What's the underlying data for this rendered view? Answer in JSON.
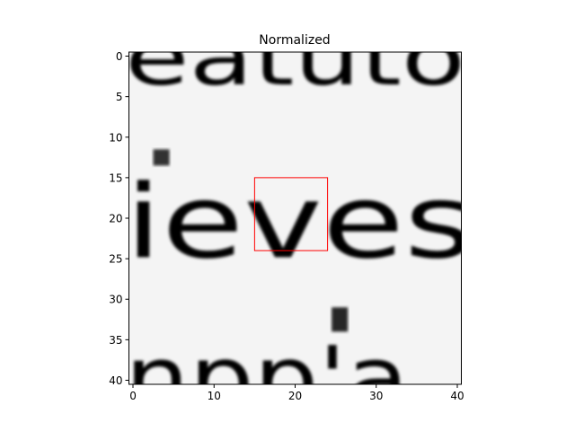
{
  "chart_data": {
    "type": "heatmap",
    "title": "Normalized",
    "xlabel": "",
    "ylabel": "",
    "colormap": "gray",
    "grid": false,
    "image_size": [
      41,
      41
    ],
    "xlim": [
      -0.5,
      40.5
    ],
    "ylim": [
      40.5,
      -0.5
    ],
    "x_ticks": [
      0,
      10,
      20,
      30,
      40
    ],
    "x_tick_labels": [
      "0",
      "10",
      "20",
      "30",
      "40"
    ],
    "y_ticks": [
      0,
      5,
      10,
      15,
      20,
      25,
      30,
      35,
      40
    ],
    "y_tick_labels": [
      "0",
      "5",
      "10",
      "15",
      "20",
      "25",
      "30",
      "35",
      "40"
    ],
    "highlight_box": {
      "color": "#ff0000",
      "x_range": [
        15,
        24
      ],
      "y_range": [
        15,
        24
      ]
    },
    "text_rows": [
      {
        "text": "eatuto",
        "y_range": [
          -3.5,
          3.5
        ],
        "x_range": [
          -1,
          41
        ],
        "darkness": 0.85
      },
      {
        "text": "ieves",
        "y_range": [
          15.5,
          24.8
        ],
        "x_range": [
          -1,
          42
        ],
        "darkness": 0.9
      },
      {
        "text": "npp'a",
        "y_range": [
          35.5,
          43.5
        ],
        "x_range": [
          -1,
          34
        ],
        "darkness": 0.8
      }
    ],
    "extra_marks": [
      {
        "shape": "dot",
        "x": 3.5,
        "y": 12.5,
        "w": 2,
        "h": 2,
        "darkness": 0.8
      },
      {
        "shape": "dot",
        "x": 25.5,
        "y": 32.5,
        "w": 2,
        "h": 3,
        "darkness": 0.85
      }
    ]
  }
}
